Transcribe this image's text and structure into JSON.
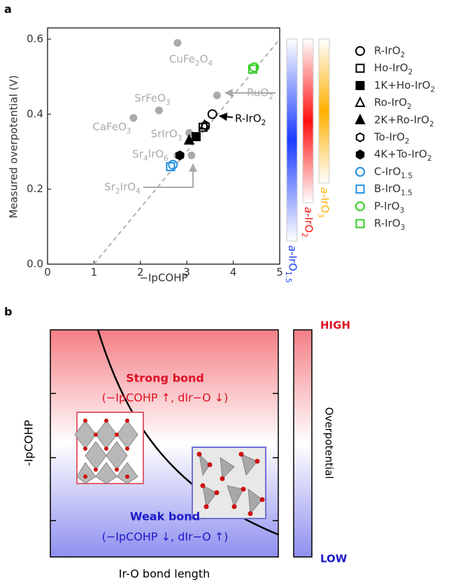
{
  "panel_labels": [
    "a",
    "b"
  ],
  "chart_data": {
    "type": "scatter",
    "xlabel": "−IpCOHP",
    "ylabel": "Measured overpotential (V)",
    "xlim": [
      0,
      5
    ],
    "xticks": [
      0,
      1,
      2,
      3,
      4,
      5
    ],
    "ylim": [
      0,
      0.6
    ],
    "yticks": [
      {
        "value": 0,
        "label": "0.0"
      },
      0.2,
      0.4,
      0.6
    ],
    "trendline": {
      "x": [
        1,
        5
      ],
      "y": [
        0,
        0.6
      ],
      "color": "#aaaaaa"
    },
    "references": {
      "color": "#aaaaaa",
      "labels": [
        "CuFe2O4",
        "SrFeO3",
        "CaFeO3",
        "SrIrO3",
        "Sr4IrO6",
        "Sr2IrO4",
        "RuO2"
      ],
      "x": [
        2.8,
        2.4,
        1.85,
        3.05,
        2.8,
        3.1,
        3.65
      ],
      "y": [
        0.59,
        0.41,
        0.39,
        0.35,
        0.29,
        0.29,
        0.45
      ]
    },
    "series": [
      {
        "name": "R-IrO2",
        "marker": "circle",
        "filled": false,
        "color": "#000000",
        "x": [
          3.55
        ],
        "y": [
          0.4
        ]
      },
      {
        "name": "Ho-IrO2",
        "marker": "square",
        "filled": false,
        "color": "#000000",
        "x": [
          3.35
        ],
        "y": [
          0.365
        ]
      },
      {
        "name": "1K+Ho-IrO2",
        "marker": "square",
        "filled": true,
        "color": "#000000",
        "x": [
          3.2
        ],
        "y": [
          0.34
        ]
      },
      {
        "name": "Ro-IrO2",
        "marker": "triangle",
        "filled": false,
        "color": "#000000",
        "x": [
          3.38
        ],
        "y": [
          0.37
        ]
      },
      {
        "name": "2K+Ro-IrO2",
        "marker": "triangle",
        "filled": true,
        "color": "#000000",
        "x": [
          3.05
        ],
        "y": [
          0.33
        ]
      },
      {
        "name": "To-IrO2",
        "marker": "hexagon",
        "filled": false,
        "color": "#000000",
        "x": [
          3.4
        ],
        "y": [
          0.37
        ]
      },
      {
        "name": "4K+To-IrO2",
        "marker": "hexagon",
        "filled": true,
        "color": "#000000",
        "x": [
          2.85
        ],
        "y": [
          0.29
        ]
      },
      {
        "name": "C-IrO1.5",
        "marker": "circle",
        "filled": false,
        "color": "#1f8fe0",
        "x": [
          2.7
        ],
        "y": [
          0.265
        ]
      },
      {
        "name": "B-IrO1.5",
        "marker": "square",
        "filled": false,
        "color": "#1f8fe0",
        "x": [
          2.65
        ],
        "y": [
          0.26
        ]
      },
      {
        "name": "P-IrO3",
        "marker": "circle",
        "filled": false,
        "color": "#33cc22",
        "x": [
          4.45
        ],
        "y": [
          0.525
        ]
      },
      {
        "name": "R-IrO3",
        "marker": "square",
        "filled": false,
        "color": "#33cc22",
        "x": [
          4.42
        ],
        "y": [
          0.52
        ]
      }
    ],
    "colorbars": [
      {
        "label": "a-IrO1.5",
        "color": "#1a3cff"
      },
      {
        "label": "a-IrO2",
        "color": "#ff1010"
      },
      {
        "label": "a-IrO3",
        "color": "#ffb000"
      }
    ]
  },
  "schematic": {
    "xlabel": "Ir-O bond length",
    "ylabel": "-IpCOHP",
    "strong": "Strong bond",
    "strong_note": "(−IpCOHP ↑, dIr−O ↓)",
    "weak": "Weak bond",
    "weak_note": "(−IpCOHP ↓, dIr−O ↑)",
    "colorbar_title": "Overpotential",
    "high": "HIGH",
    "low": "LOW"
  }
}
